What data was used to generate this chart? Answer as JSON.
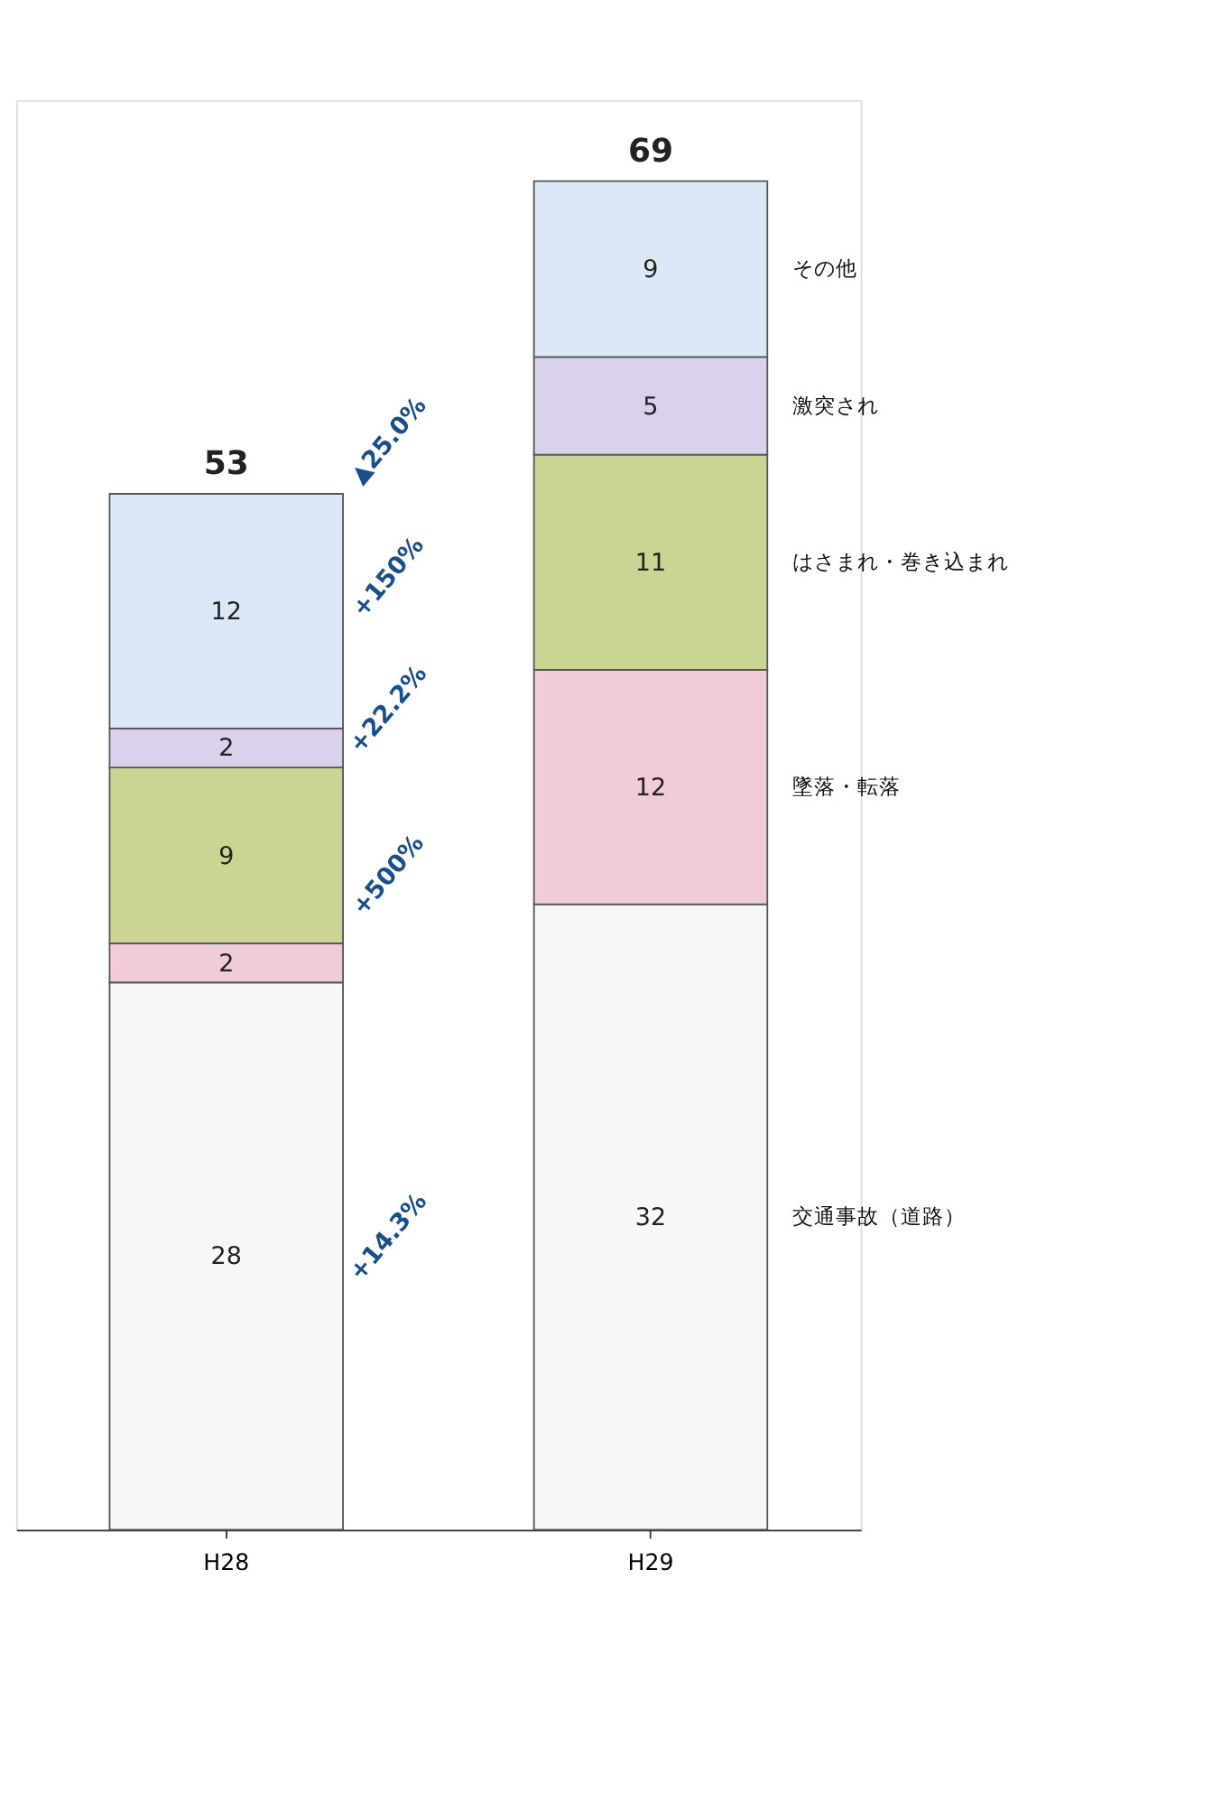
{
  "chart_data": {
    "type": "bar",
    "stacked": true,
    "categories": [
      "H28",
      "H29"
    ],
    "series": [
      {
        "name": "交通事故（道路）",
        "color": "#f7f7f7",
        "values": [
          28,
          32
        ]
      },
      {
        "name": "墜落・転落",
        "color": "#f0cdd6",
        "values": [
          2,
          12
        ]
      },
      {
        "name": "はさまれ・巻き込まれ",
        "color": "#ccd494",
        "values": [
          9,
          11
        ]
      },
      {
        "name": "激突され",
        "color": "#d9d2ea",
        "values": [
          2,
          5
        ]
      },
      {
        "name": "その他",
        "color": "#dce8f5",
        "values": [
          12,
          9
        ]
      }
    ],
    "data_labels": true,
    "totals": [
      "53",
      "69"
    ],
    "legend": false,
    "grid": false,
    "annotations": [
      "+14.3%",
      "+500%",
      "+22.2%",
      "+150%",
      "▲25.0%"
    ]
  }
}
